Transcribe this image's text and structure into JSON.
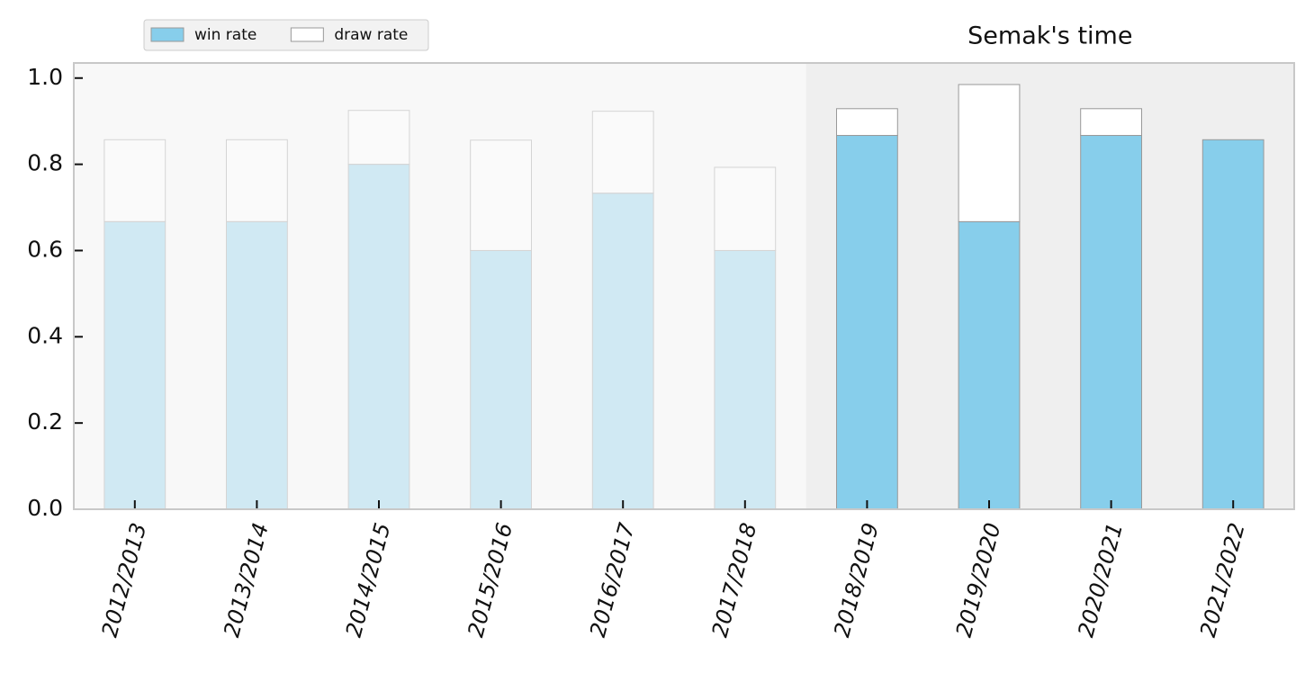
{
  "chart_data": {
    "type": "stacked_bar",
    "categories": [
      "2012/2013",
      "2013/2014",
      "2014/2015",
      "2015/2016",
      "2016/2017",
      "2017/2018",
      "2018/2019",
      "2019/2020",
      "2020/2021",
      "2021/2022"
    ],
    "series": [
      {
        "name": "win rate",
        "color": "#87ceeb",
        "values": [
          0.667,
          0.667,
          0.8,
          0.6,
          0.733,
          0.6,
          0.867,
          0.667,
          0.867,
          0.857
        ]
      },
      {
        "name": "draw rate",
        "color": "#ffffff",
        "values": [
          0.19,
          0.19,
          0.125,
          0.256,
          0.19,
          0.193,
          0.062,
          0.318,
          0.062,
          0
        ]
      }
    ],
    "ylim": [
      0,
      1.035
    ],
    "yticks": [
      {
        "value": 0,
        "label": "0.0"
      },
      0.2,
      0.4,
      0.6,
      0.8,
      {
        "value": 1,
        "label": "1.0"
      }
    ],
    "legend": "upper left",
    "annotations": [
      {
        "text": "Semak's time",
        "from": "2018/2019"
      }
    ]
  }
}
